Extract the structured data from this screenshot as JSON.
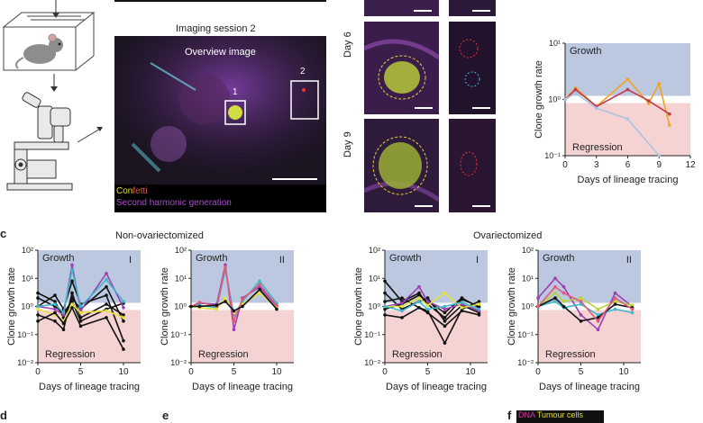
{
  "figure": {
    "session_title": "Imaging session 2",
    "overview_label": "Overview image",
    "box1_label": "1",
    "box2_label": "2",
    "legend_conf": "Con",
    "legend_fetti": "fetti",
    "legend_shg": "Second harmonic generation",
    "day6": "Day 6",
    "day9": "Day 9",
    "panel_c": "c",
    "panel_d": "d",
    "panel_e": "e",
    "panel_f": "f",
    "non_ovx_title": "Non-ovariectomized",
    "ovx_title": "Ovariectomized",
    "f_dna": "DNA",
    "f_tumour": "Tumour cells"
  },
  "chart_data": [
    {
      "id": "b-right",
      "type": "line",
      "ylabel": "Clone growth rate",
      "xlabel": "Days of lineage tracing",
      "yscale": "log",
      "ylim": [
        0.1,
        10
      ],
      "xlim": [
        0,
        12
      ],
      "xticks": [
        "0",
        "3",
        "6",
        "9",
        "12"
      ],
      "yticks": [
        "10¹",
        "10⁰",
        "10⁻¹"
      ],
      "growth_label": "Growth",
      "regression_label": "Regression",
      "series": [
        {
          "color": "#f2a31c",
          "x": [
            0,
            1,
            3,
            6,
            8,
            9,
            10
          ],
          "y": [
            1.0,
            1.6,
            0.75,
            2.3,
            0.85,
            1.9,
            0.35
          ]
        },
        {
          "color": "#c0394e",
          "x": [
            0,
            1,
            3,
            6,
            8,
            10
          ],
          "y": [
            1.0,
            1.5,
            0.75,
            1.5,
            0.95,
            0.55
          ]
        },
        {
          "color": "#a9c4dc",
          "x": [
            0,
            1,
            3,
            6,
            9
          ],
          "y": [
            1.0,
            1.3,
            0.7,
            0.45,
            0.1
          ]
        }
      ]
    },
    {
      "id": "c1",
      "type": "line",
      "ylabel": "Clone growth rate",
      "xlabel": "Days of lineage tracing",
      "yscale": "log",
      "ylim": [
        0.01,
        100
      ],
      "xlim": [
        0,
        12
      ],
      "xticks": [
        "0",
        "5",
        "10"
      ],
      "yticks": [
        "10²",
        "10¹",
        "10⁰",
        "10⁻¹",
        "10⁻²"
      ],
      "growth_label": "Growth",
      "regression_label": "Regression",
      "roman": "I",
      "series": [
        {
          "color": "#111111",
          "x": [
            0,
            2,
            3,
            4,
            5,
            8,
            10
          ],
          "y": [
            3,
            1.5,
            0.4,
            2,
            0.8,
            5,
            0.3
          ]
        },
        {
          "color": "#111111",
          "x": [
            0,
            2,
            3,
            4,
            5,
            8,
            10
          ],
          "y": [
            1,
            2.5,
            0.8,
            8,
            1.2,
            2.5,
            0.06
          ]
        },
        {
          "color": "#111111",
          "x": [
            0,
            2,
            3,
            4,
            5,
            8,
            10
          ],
          "y": [
            0.5,
            0.3,
            0.15,
            3,
            0.4,
            1.2,
            0.5
          ]
        },
        {
          "color": "#111111",
          "x": [
            0,
            2,
            3,
            4,
            5,
            8,
            10
          ],
          "y": [
            2,
            1,
            0.6,
            1.5,
            0.3,
            0.8,
            1.3
          ]
        },
        {
          "color": "#9b3fb5",
          "x": [
            0,
            2,
            3,
            4,
            5,
            8,
            10
          ],
          "y": [
            1,
            0.8,
            0.5,
            30,
            0.7,
            15,
            0.9
          ]
        },
        {
          "color": "#3fb6c9",
          "x": [
            0,
            2,
            3,
            4,
            5,
            8,
            10
          ],
          "y": [
            1,
            1.2,
            0.6,
            20,
            1.0,
            9,
            1.5
          ]
        },
        {
          "color": "#e6e23a",
          "x": [
            0,
            2,
            3,
            4,
            5,
            8,
            10
          ],
          "y": [
            0.8,
            0.5,
            0.3,
            1.2,
            0.6,
            0.7,
            0.4
          ]
        },
        {
          "color": "#111111",
          "x": [
            0,
            2,
            3,
            4,
            5,
            8,
            10
          ],
          "y": [
            0.3,
            0.6,
            0.25,
            0.9,
            0.2,
            0.4,
            0.03
          ]
        }
      ]
    },
    {
      "id": "c2",
      "type": "line",
      "ylabel": "Clone growth rate",
      "xlabel": "Days of lineage tracing",
      "yscale": "log",
      "ylim": [
        0.01,
        100
      ],
      "xlim": [
        0,
        12
      ],
      "xticks": [
        "0",
        "5",
        "10"
      ],
      "yticks": [
        "10²",
        "10¹",
        "10⁰",
        "10⁻¹",
        "10⁻²"
      ],
      "growth_label": "Growth",
      "regression_label": "Regression",
      "roman": "II",
      "series": [
        {
          "color": "#9b3fb5",
          "x": [
            0,
            1,
            3,
            4,
            5,
            6,
            8,
            10
          ],
          "y": [
            1,
            1.3,
            1.2,
            30,
            0.15,
            2,
            5,
            1.0
          ]
        },
        {
          "color": "#3fb6c9",
          "x": [
            0,
            1,
            3,
            4,
            5,
            6,
            8,
            10
          ],
          "y": [
            1,
            1.1,
            0.9,
            20,
            0.5,
            1.5,
            8,
            1.3
          ]
        },
        {
          "color": "#e6e23a",
          "x": [
            0,
            1,
            3,
            4,
            5,
            6,
            8,
            10
          ],
          "y": [
            1,
            0.9,
            0.8,
            2,
            0.6,
            1.2,
            3,
            0.9
          ]
        },
        {
          "color": "#e05a7a",
          "x": [
            0,
            1,
            3,
            4,
            5,
            6,
            8,
            10
          ],
          "y": [
            1,
            1.4,
            1.0,
            25,
            0.3,
            1.8,
            6,
            1.1
          ]
        },
        {
          "color": "#111111",
          "x": [
            0,
            1,
            3,
            4,
            5,
            6,
            8,
            10
          ],
          "y": [
            1,
            1.0,
            1.1,
            1.5,
            0.7,
            1.0,
            4,
            0.8
          ]
        }
      ]
    },
    {
      "id": "c3",
      "type": "line",
      "ylabel": "Clone growth rate",
      "xlabel": "Days of lineage tracing",
      "yscale": "log",
      "ylim": [
        0.01,
        100
      ],
      "xlim": [
        0,
        12
      ],
      "xticks": [
        "0",
        "5",
        "10"
      ],
      "yticks": [
        "10²",
        "10¹",
        "10⁰",
        "10⁻¹",
        "10⁻²"
      ],
      "growth_label": "Growth",
      "regression_label": "Regression",
      "roman": "I",
      "series": [
        {
          "color": "#111111",
          "x": [
            0,
            2,
            4,
            5,
            7,
            9,
            11
          ],
          "y": [
            8,
            1.5,
            3,
            1.2,
            0.4,
            1.8,
            1.0
          ]
        },
        {
          "color": "#111111",
          "x": [
            0,
            2,
            4,
            5,
            7,
            9,
            11
          ],
          "y": [
            3,
            0.8,
            1.5,
            2,
            0.3,
            1.1,
            0.6
          ]
        },
        {
          "color": "#111111",
          "x": [
            0,
            2,
            4,
            5,
            7,
            9,
            11
          ],
          "y": [
            1.5,
            2,
            0.9,
            0.7,
            0.05,
            0.8,
            1.5
          ]
        },
        {
          "color": "#111111",
          "x": [
            0,
            2,
            4,
            5,
            7,
            9,
            11
          ],
          "y": [
            0.8,
            1.2,
            2.5,
            1.5,
            0.6,
            2,
            0.9
          ]
        },
        {
          "color": "#9b3fb5",
          "x": [
            0,
            2,
            4,
            5,
            7,
            9,
            11
          ],
          "y": [
            1,
            1.3,
            5,
            1.5,
            0.8,
            1.2,
            0.7
          ]
        },
        {
          "color": "#e6e23a",
          "x": [
            0,
            2,
            4,
            5,
            7,
            9,
            11
          ],
          "y": [
            1,
            1.0,
            2,
            1.1,
            3,
            0.9,
            1.2
          ]
        },
        {
          "color": "#3fb6c9",
          "x": [
            0,
            2,
            4,
            5,
            7,
            9,
            11
          ],
          "y": [
            1,
            0.7,
            1.5,
            0.8,
            1.0,
            1.4,
            0.8
          ]
        },
        {
          "color": "#111111",
          "x": [
            0,
            2,
            4,
            5,
            7,
            9,
            11
          ],
          "y": [
            0.5,
            0.4,
            0.9,
            0.6,
            0.2,
            0.7,
            0.5
          ]
        }
      ]
    },
    {
      "id": "c4",
      "type": "line",
      "ylabel": "Clone growth rate",
      "xlabel": "Days of lineage tracing",
      "yscale": "log",
      "ylim": [
        0.01,
        100
      ],
      "xlim": [
        0,
        12
      ],
      "xticks": [
        "0",
        "5",
        "10"
      ],
      "yticks": [
        "10²",
        "10¹",
        "10⁰",
        "10⁻¹",
        "10⁻²"
      ],
      "growth_label": "Growth",
      "regression_label": "Regression",
      "roman": "II",
      "series": [
        {
          "color": "#9b3fb5",
          "x": [
            0,
            2,
            3,
            5,
            7,
            9,
            11
          ],
          "y": [
            2,
            10,
            5,
            0.5,
            0.15,
            3,
            1.0
          ]
        },
        {
          "color": "#b9d23c",
          "x": [
            0,
            2,
            3,
            5,
            7,
            9,
            11
          ],
          "y": [
            1,
            3,
            1.5,
            2,
            0.8,
            1.5,
            1.1
          ]
        },
        {
          "color": "#3fb6c9",
          "x": [
            0,
            2,
            3,
            5,
            7,
            9,
            11
          ],
          "y": [
            1,
            1.5,
            0.9,
            1.2,
            0.5,
            0.8,
            0.6
          ]
        },
        {
          "color": "#111111",
          "x": [
            0,
            2,
            3,
            5,
            7,
            9,
            11
          ],
          "y": [
            1,
            2,
            1.0,
            0.3,
            0.4,
            1.2,
            0.9
          ]
        },
        {
          "color": "#e05a7a",
          "x": [
            0,
            2,
            3,
            5,
            7,
            9,
            11
          ],
          "y": [
            1,
            5,
            3,
            1.5,
            0.3,
            2,
            0.8
          ]
        }
      ]
    }
  ]
}
